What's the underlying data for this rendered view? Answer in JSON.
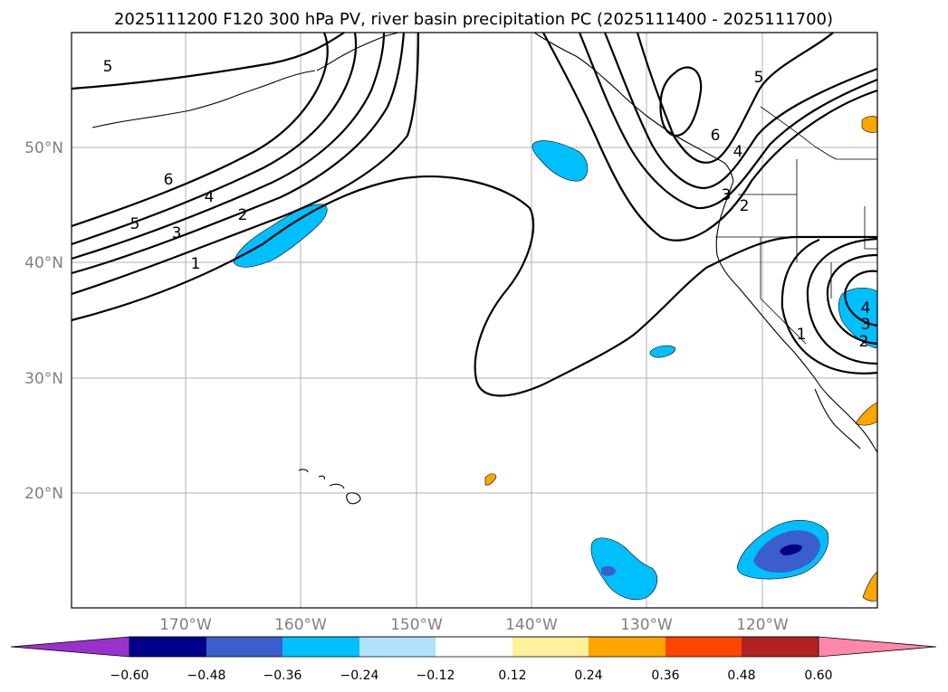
{
  "title": "2025111200 F120 300 hPa PV, river basin precipitation PC (2025111400 - 2025111700)",
  "map": {
    "lat_labels": [
      "50°N",
      "40°N",
      "30°N",
      "20°N"
    ],
    "lon_labels": [
      "170°W",
      "160°W",
      "150°W",
      "140°W",
      "130°W",
      "120°W"
    ],
    "contour_labels": [
      "5",
      "6",
      "4",
      "5",
      "3",
      "2",
      "1",
      "5",
      "6",
      "4",
      "3",
      "2",
      "1",
      "4",
      "3",
      "2"
    ],
    "colors": {
      "light_blue": "#00bfff",
      "mid_blue": "#3a5fcd",
      "dark_blue": "#00008b",
      "orange": "#ffa500"
    }
  },
  "colorbar": {
    "ticks": [
      "−0.60",
      "−0.48",
      "−0.36",
      "−0.24",
      "−0.12",
      "0.12",
      "0.24",
      "0.36",
      "0.48",
      "0.60"
    ],
    "colors": [
      "#9932cc",
      "#00008b",
      "#3a5fcd",
      "#00bfff",
      "#b0e2ff",
      "#ffffff",
      "#fff09a",
      "#ffa500",
      "#ff4500",
      "#b22222",
      "#ff88aa"
    ]
  }
}
